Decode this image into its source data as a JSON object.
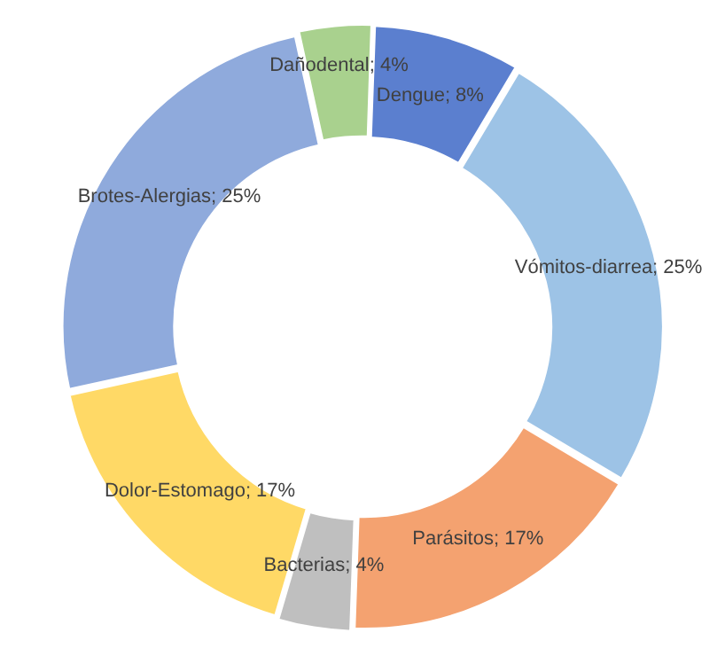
{
  "chart_data": {
    "type": "donut",
    "categories": [
      "Dengue",
      "Vómitos-diarrea",
      "Parásitos",
      "Bacterias",
      "Dolor-Estomago",
      "Brotes-Alergias",
      "Dañodental"
    ],
    "values": [
      8,
      25,
      17,
      4,
      17,
      25,
      4
    ],
    "value_labels": [
      "8%",
      "25%",
      "17%",
      "4%",
      "17%",
      "25%",
      "4%"
    ],
    "colors": [
      "#5b7fcf",
      "#9dc3e6",
      "#f4a270",
      "#bfbfbf",
      "#ffd966",
      "#8faadc",
      "#a9d18e"
    ],
    "legend": false
  }
}
